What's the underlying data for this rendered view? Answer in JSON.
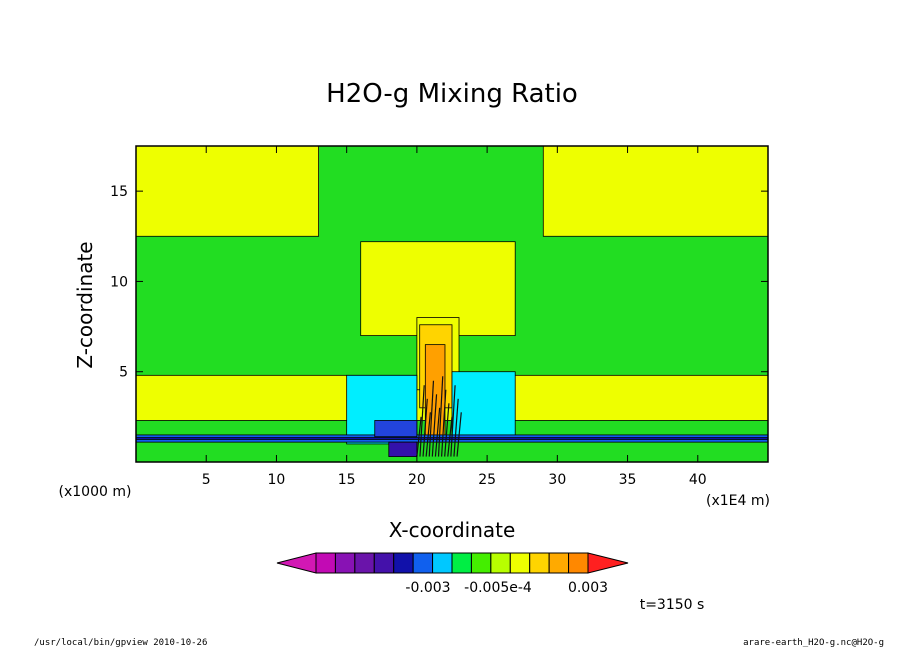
{
  "chart_data": {
    "type": "heatmap",
    "title": "H2O-g Mixing Ratio",
    "xlabel": "X-coordinate",
    "ylabel": "Z-coordinate",
    "x_unit": "(x1E4 m)",
    "y_unit": "(x1000 m)",
    "xlim": [
      0,
      45
    ],
    "ylim": [
      0,
      17.5
    ],
    "xticks": [
      5,
      10,
      15,
      20,
      25,
      30,
      35,
      40
    ],
    "yticks": [
      5,
      10,
      15
    ],
    "regions": [
      {
        "level": "green",
        "x0": 0,
        "x1": 45,
        "y0": 0,
        "y1": 17.5
      },
      {
        "level": "yellow",
        "x0": 0,
        "x1": 13,
        "y0": 12.5,
        "y1": 17.5
      },
      {
        "level": "yellow",
        "x0": 29,
        "x1": 45,
        "y0": 12.5,
        "y1": 17.5
      },
      {
        "level": "yellow",
        "x0": 0,
        "x1": 45,
        "y0": 2.3,
        "y1": 4.8
      },
      {
        "level": "yellow",
        "x0": 16,
        "x1": 27,
        "y0": 7,
        "y1": 12.2
      },
      {
        "level": "yellow",
        "x0": 20,
        "x1": 23,
        "y0": 4,
        "y1": 8
      },
      {
        "level": "orange-light",
        "x0": 20.2,
        "x1": 22.5,
        "y0": 3,
        "y1": 7.6
      },
      {
        "level": "orange",
        "x0": 20.6,
        "x1": 22,
        "y0": 1.5,
        "y1": 6.5
      },
      {
        "level": "cyan",
        "x0": 15,
        "x1": 20,
        "y0": 1,
        "y1": 4.8
      },
      {
        "level": "cyan",
        "x0": 22.5,
        "x1": 27,
        "y0": 1.5,
        "y1": 5
      },
      {
        "level": "blue",
        "x0": 0,
        "x1": 45,
        "y0": 1.1,
        "y1": 1.5
      },
      {
        "level": "navy",
        "x0": 0,
        "x1": 45,
        "y0": 1.25,
        "y1": 1.35
      },
      {
        "level": "blue-mid",
        "x0": 17,
        "x1": 20,
        "y0": 1.4,
        "y1": 2.3
      },
      {
        "level": "violet",
        "x0": 18,
        "x1": 20,
        "y0": 0.3,
        "y1": 1.1
      }
    ],
    "colorbar": {
      "colors": [
        "#d218b4",
        "#c20ab4",
        "#8812b4",
        "#6a14aa",
        "#4411aa",
        "#1111aa",
        "#1060ee",
        "#00c8ff",
        "#00ee44",
        "#44ee00",
        "#b8ff00",
        "#eeff00",
        "#ffd400",
        "#ffaa00",
        "#ff8800",
        "#ff2020"
      ],
      "labels": [
        "-0.003",
        "-0.005e-4",
        "0.003"
      ]
    }
  },
  "time_label": "t=3150 s",
  "footer_left": "/usr/local/bin/gpview  2010-10-26",
  "footer_right": "arare-earth_H2O-g.nc@H2O-g"
}
